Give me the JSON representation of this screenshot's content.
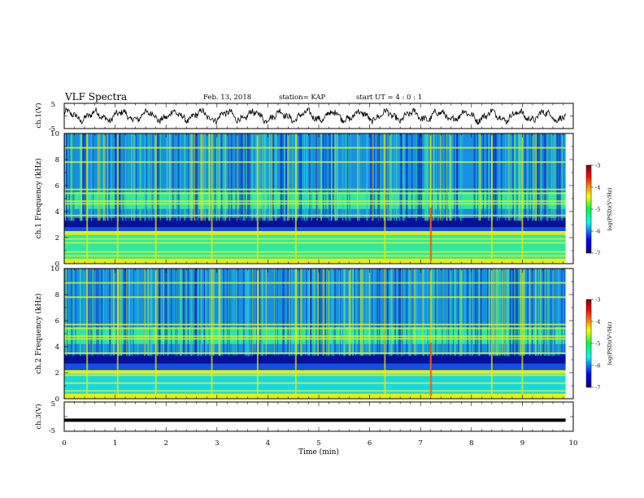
{
  "header": {
    "title": "VLF Spectra",
    "date": "Feb. 13, 2018",
    "station": "station= KAP",
    "start": "start UT =  4 : 0  : 1"
  },
  "chart_data": [
    {
      "type": "line",
      "panel": "ch1-waveform",
      "ylabel": "ch.1(V)",
      "ylim": [
        -5,
        5
      ],
      "yticks": [
        "5",
        "-5"
      ],
      "xlim": [
        0,
        10
      ],
      "note": "noisy oscillating waveform, amplitude roughly -3 to 3 V, period about 0.5 min",
      "line_color": "#000000"
    },
    {
      "type": "heatmap",
      "panel": "ch1-spectrogram",
      "ylabel": "ch.1 Frequency (kHz)",
      "ylim": [
        0,
        10
      ],
      "yticks": [
        "0",
        "2",
        "4",
        "6",
        "8",
        "10"
      ],
      "xlim": [
        0,
        10
      ],
      "colorbar": {
        "label": "log(PSD)(V²/Hz)",
        "range": [
          -7,
          -3
        ],
        "ticks": [
          "-3",
          "-4",
          "-5",
          "-6",
          "-7"
        ]
      },
      "bands_khz": [
        {
          "from": 0.0,
          "to": 0.4,
          "level": "yellow"
        },
        {
          "from": 0.4,
          "to": 2.2,
          "level": "cyan-green"
        },
        {
          "from": 2.2,
          "to": 2.5,
          "level": "yellow"
        },
        {
          "from": 2.5,
          "to": 2.8,
          "level": "blue"
        },
        {
          "from": 2.8,
          "to": 3.5,
          "level": "dark-blue"
        },
        {
          "from": 3.5,
          "to": 4.2,
          "level": "blue-cyan"
        },
        {
          "from": 4.2,
          "to": 5.5,
          "level": "cyan-green"
        },
        {
          "from": 5.5,
          "to": 10.0,
          "level": "blue-cyan"
        }
      ],
      "lines_khz": [
        0.6,
        0.9,
        1.6,
        1.9,
        2.3,
        3.7,
        4.6,
        4.8,
        5.4,
        5.7,
        7.8,
        8.9
      ],
      "bursts_min": [
        0.45,
        1.05,
        1.8,
        2.9,
        3.8,
        4.55,
        6.3,
        7.2,
        8.4,
        9.0
      ]
    },
    {
      "type": "heatmap",
      "panel": "ch2-spectrogram",
      "ylabel": "ch.2 Frequency (kHz)",
      "ylim": [
        0,
        10
      ],
      "yticks": [
        "0",
        "2",
        "4",
        "6",
        "8",
        "10"
      ],
      "xlim": [
        0,
        10
      ],
      "colorbar": {
        "label": "log(PSD)(V²/Hz)",
        "range": [
          -7,
          -3
        ],
        "ticks": [
          "-3",
          "-4",
          "-5",
          "-6",
          "-7"
        ]
      },
      "bands_khz": [
        {
          "from": 0.0,
          "to": 0.4,
          "level": "yellow"
        },
        {
          "from": 0.4,
          "to": 1.9,
          "level": "cyan"
        },
        {
          "from": 1.9,
          "to": 2.2,
          "level": "yellow"
        },
        {
          "from": 2.2,
          "to": 2.7,
          "level": "blue"
        },
        {
          "from": 2.7,
          "to": 3.4,
          "level": "dark-blue"
        },
        {
          "from": 3.4,
          "to": 4.2,
          "level": "blue-cyan"
        },
        {
          "from": 4.2,
          "to": 5.5,
          "level": "cyan-green"
        },
        {
          "from": 5.5,
          "to": 10.0,
          "level": "blue-cyan"
        }
      ],
      "lines_khz": [
        0.6,
        1.2,
        1.8,
        2.0,
        3.5,
        4.6,
        4.8,
        5.4,
        5.7,
        7.8,
        8.9
      ],
      "bursts_min": [
        0.45,
        1.05,
        1.8,
        2.9,
        3.8,
        4.55,
        6.3,
        7.2,
        8.4,
        9.0
      ]
    },
    {
      "type": "line",
      "panel": "ch3-waveform",
      "ylabel": "ch.3(V)",
      "ylim": [
        -5,
        5
      ],
      "yticks": [
        "5",
        "-5"
      ],
      "xlim": [
        0,
        10
      ],
      "constant_value": -1.2,
      "xlabel": "Time  (min)",
      "xticks": [
        "0",
        "1",
        "2",
        "3",
        "4",
        "5",
        "6",
        "7",
        "8",
        "9",
        "10"
      ]
    }
  ]
}
